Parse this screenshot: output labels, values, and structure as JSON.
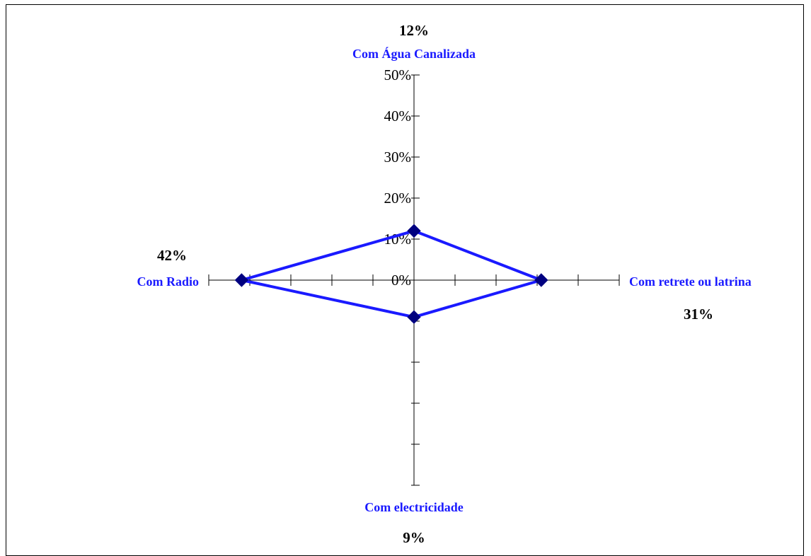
{
  "chart_data": {
    "type": "radar",
    "title": "",
    "axis_ticks": [
      "0%",
      "10%",
      "20%",
      "30%",
      "40%",
      "50%"
    ],
    "rlim": [
      0,
      50
    ],
    "grid": false,
    "categories": [
      "Com Água Canalizada",
      "Com retrete ou latrina",
      "Com electricidade",
      "Com Radio"
    ],
    "values": [
      12,
      31,
      9,
      42
    ],
    "value_labels": [
      "12%",
      "31%",
      "9%",
      "42%"
    ],
    "series": [
      {
        "values": [
          12,
          31,
          9,
          42
        ],
        "color": "#1a1aff",
        "marker_color": "#000080"
      }
    ],
    "colors": {
      "line": "#1a1aff",
      "marker": "#000080",
      "category_text": "#1a1aff",
      "axis": "#000000"
    }
  }
}
